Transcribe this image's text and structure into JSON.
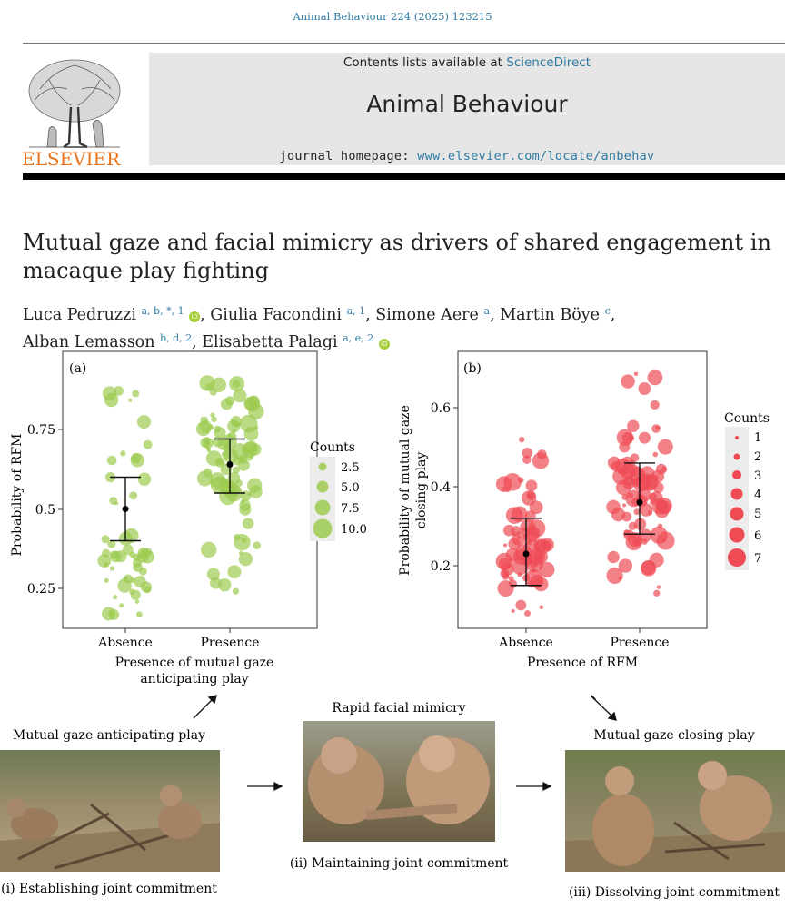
{
  "header": {
    "journal_ref": "Animal Behaviour 224 (2025) 123215",
    "contents_prefix": "Contents lists available at ",
    "contents_link": "ScienceDirect",
    "journal_title": "Animal Behaviour",
    "homepage_prefix": "journal homepage: ",
    "homepage_link": "www.elsevier.com/locate/anbehav",
    "publisher_logo_text": "ELSEVIER"
  },
  "article": {
    "title": "Mutual gaze and facial mimicry as drivers of shared engagement in macaque play fighting",
    "authors": [
      {
        "name": "Luca Pedruzzi",
        "aff": "a, b, *, 1",
        "orcid": true,
        "sep": ", "
      },
      {
        "name": "Giulia Facondini",
        "aff": "a, 1",
        "orcid": false,
        "sep": ", "
      },
      {
        "name": "Simone Aere",
        "aff": "a",
        "orcid": false,
        "sep": ", "
      },
      {
        "name": "Martin Böye",
        "aff": "c",
        "orcid": false,
        "sep": ","
      },
      {
        "name": "Alban Lemasson",
        "aff": "b, d, 2",
        "orcid": false,
        "sep": ", "
      },
      {
        "name": "Elisabetta Palagi",
        "aff": "a, e, 2",
        "orcid": true,
        "sep": ""
      }
    ]
  },
  "figure": {
    "panel_a": {
      "label": "(a)",
      "ylabel": "Probability of RFM",
      "xlabel_line1": "Presence of mutual gaze",
      "xlabel_line2": "anticipating play",
      "categories": [
        "Absence",
        "Presence"
      ],
      "yticks": [
        "0.25",
        "0.5",
        "0.75"
      ],
      "legend_title": "Counts",
      "legend_entries": [
        "2.5",
        "5.0",
        "7.5",
        "10.0"
      ],
      "color": "#9ccb4f"
    },
    "panel_b": {
      "label": "(b)",
      "ylabel_line1": "Probability of mutual gaze",
      "ylabel_line2": "closing play",
      "xlabel": "Presence of RFM",
      "categories": [
        "Absence",
        "Presence"
      ],
      "yticks": [
        "0.2",
        "0.4",
        "0.6"
      ],
      "legend_title": "Counts",
      "legend_entries": [
        "1",
        "2",
        "3",
        "4",
        "5",
        "6",
        "7"
      ],
      "color": "#ee4b55"
    },
    "captions": {
      "mutual_gaze_anticipating": "Mutual gaze anticipating play",
      "rapid_facial_mimicry": "Rapid facial mimicry",
      "mutual_gaze_closing": "Mutual gaze closing play",
      "stage_i": "(i) Establishing joint commitment",
      "stage_ii": "(ii) Maintaining joint commitment",
      "stage_iii": "(iii) Dissolving joint commitment"
    }
  },
  "chart_data": [
    {
      "type": "scatter",
      "title": "(a)",
      "xlabel": "Presence of mutual gaze anticipating play",
      "ylabel": "Probability of RFM",
      "categories": [
        "Absence",
        "Presence"
      ],
      "ylim": [
        0.15,
        0.96
      ],
      "summary": [
        {
          "category": "Absence",
          "mean": 0.5,
          "ci_low": 0.4,
          "ci_high": 0.6
        },
        {
          "category": "Presence",
          "mean": 0.64,
          "ci_low": 0.55,
          "ci_high": 0.72
        }
      ],
      "legend": {
        "title": "Counts",
        "entries": [
          2.5,
          5.0,
          7.5,
          10.0
        ],
        "placement": "right"
      },
      "grid": false
    },
    {
      "type": "scatter",
      "title": "(b)",
      "xlabel": "Presence of RFM",
      "ylabel": "Probability of mutual gaze closing play",
      "categories": [
        "Absence",
        "Presence"
      ],
      "ylim": [
        0.05,
        0.72
      ],
      "summary": [
        {
          "category": "Absence",
          "mean": 0.23,
          "ci_low": 0.15,
          "ci_high": 0.32
        },
        {
          "category": "Presence",
          "mean": 0.36,
          "ci_low": 0.28,
          "ci_high": 0.46
        }
      ],
      "legend": {
        "title": "Counts",
        "entries": [
          1,
          2,
          3,
          4,
          5,
          6,
          7
        ],
        "placement": "right"
      },
      "grid": false
    }
  ]
}
